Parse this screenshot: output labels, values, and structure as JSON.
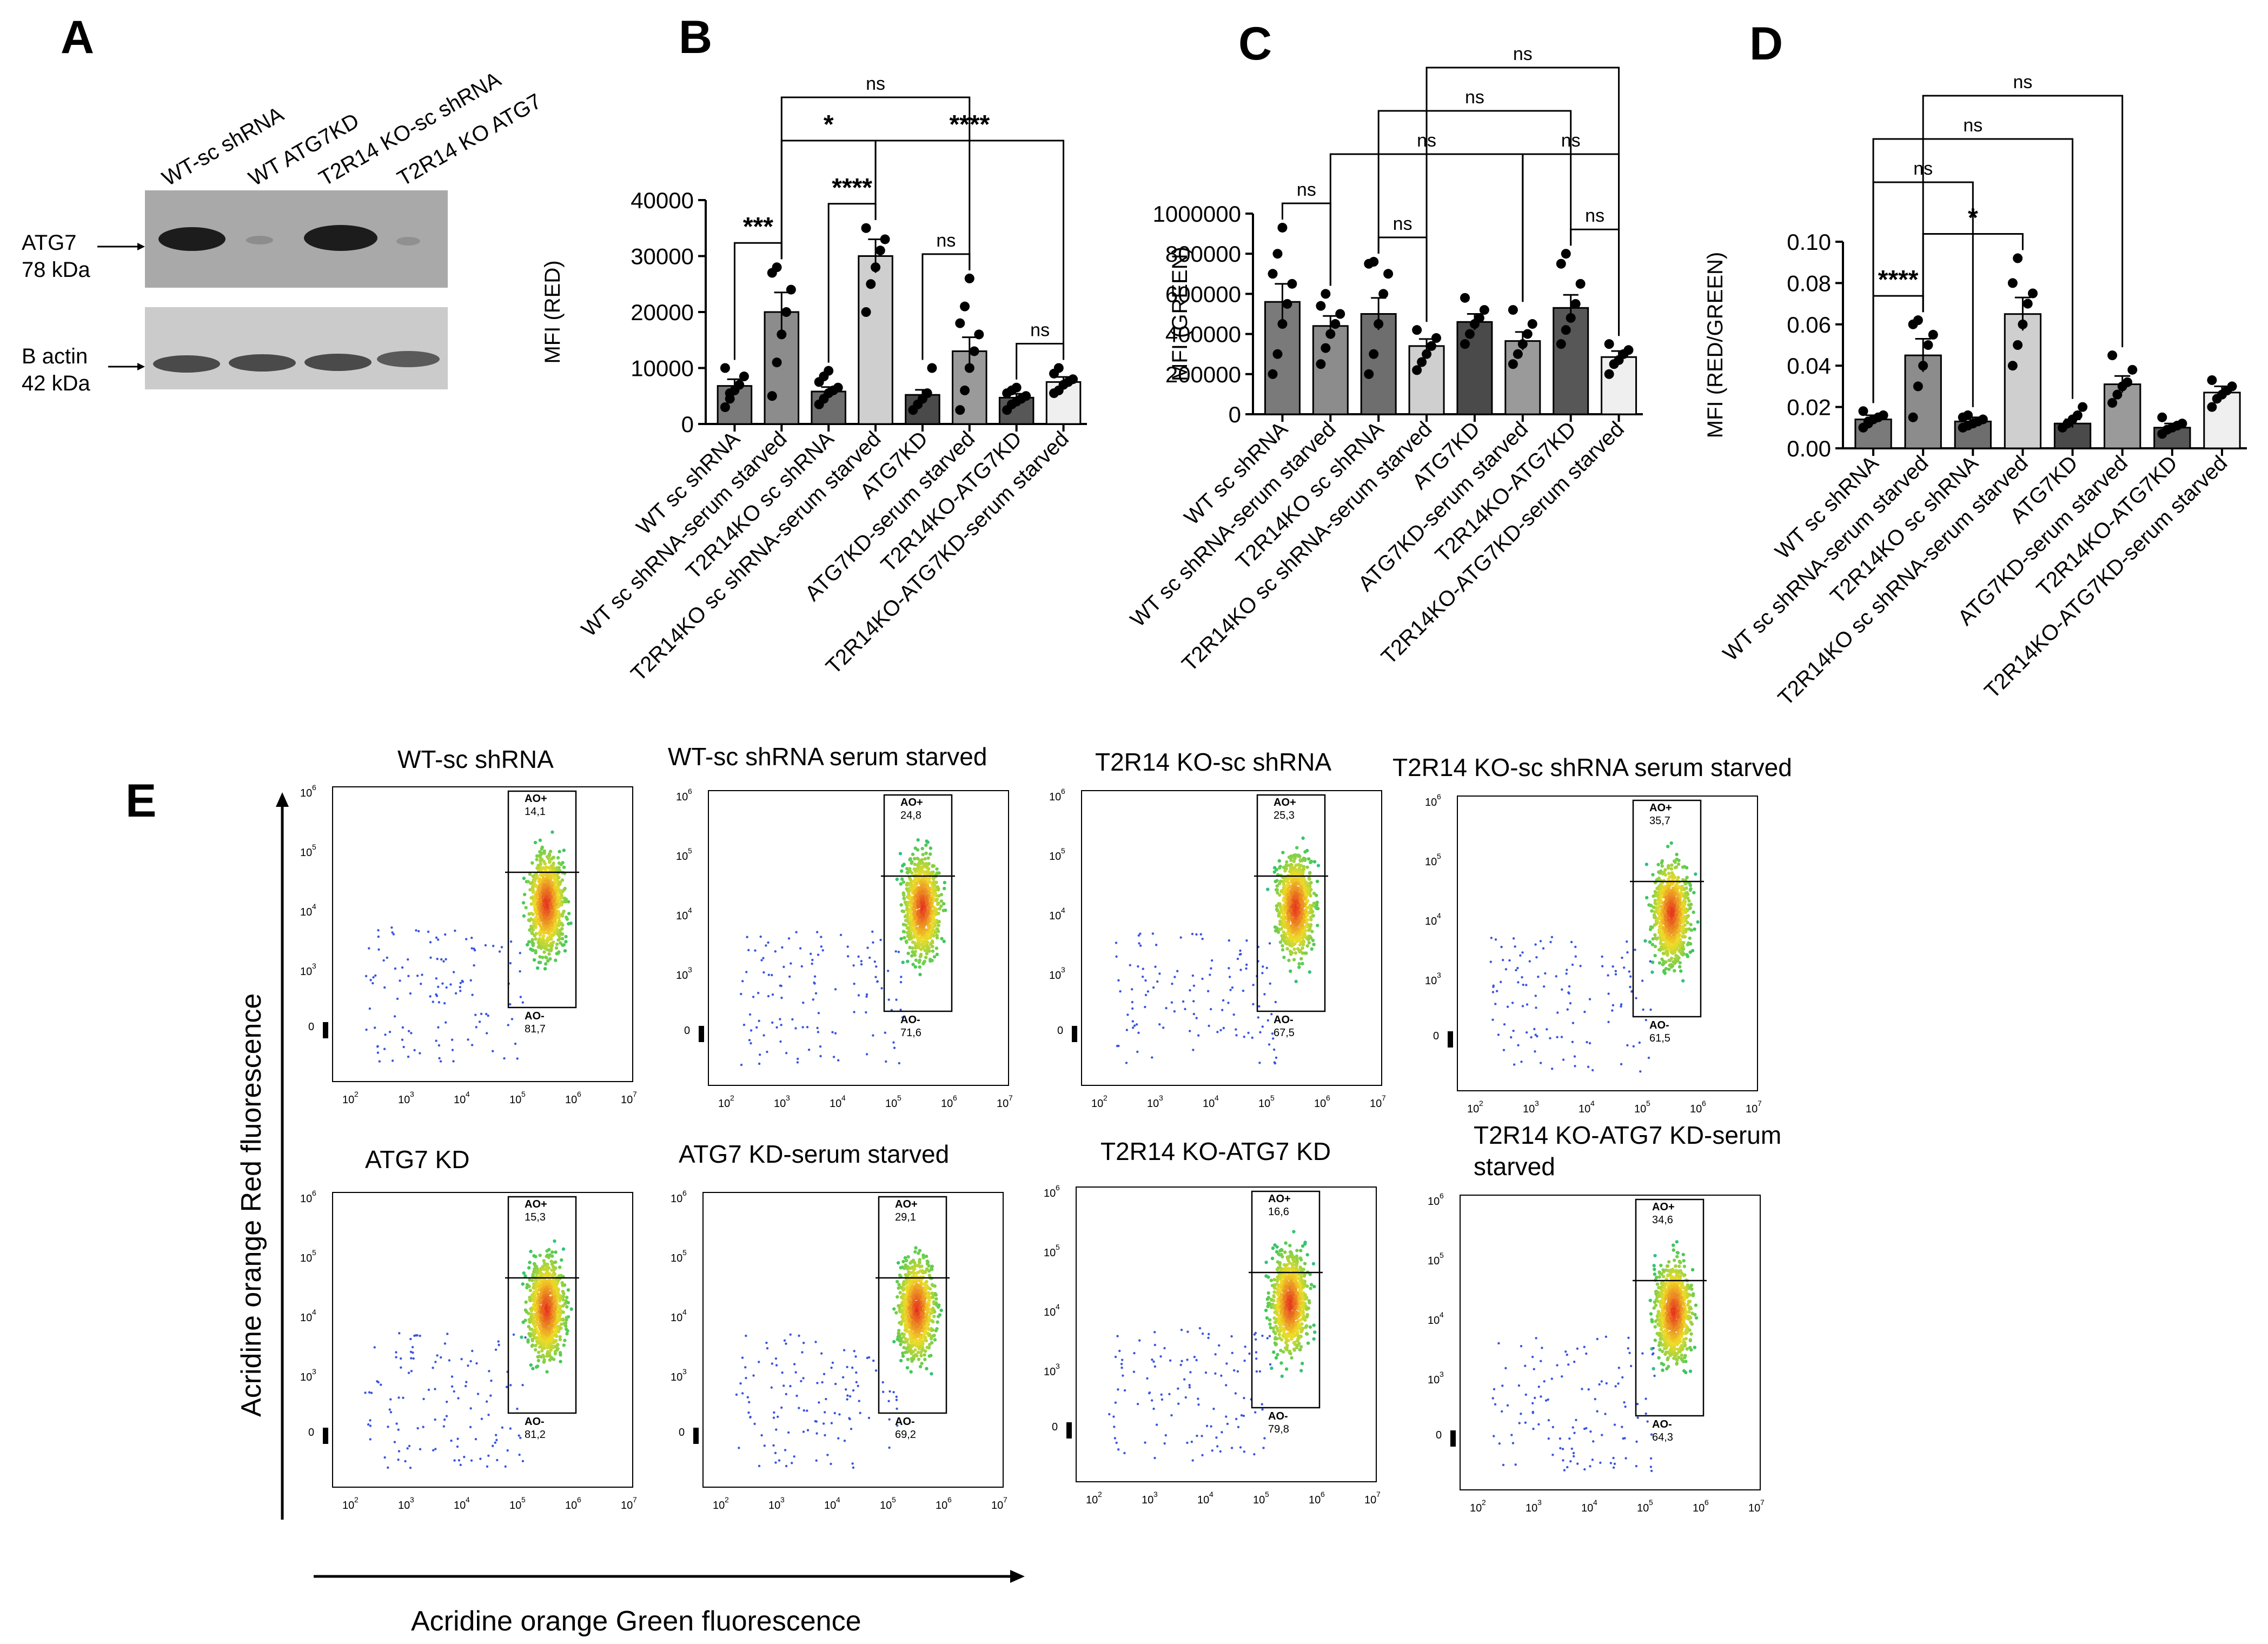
{
  "panel_letters": [
    "A",
    "B",
    "C",
    "D",
    "E"
  ],
  "blot": {
    "lane_labels": [
      "WT-sc shRNA",
      "WT ATG7KD",
      "T2R14 KO-sc shRNA",
      "T2R14 KO ATG7"
    ],
    "band1_label": [
      "ATG7",
      "78 kDa"
    ],
    "band2_label": [
      "B actin",
      "42 kDa"
    ]
  },
  "sig": {
    "ns": "ns",
    "s1": "*",
    "s3": "***",
    "s4": "****"
  },
  "chart_data": [
    {
      "panel": "B",
      "type": "bar",
      "ylabel": "MFI (RED)",
      "ylim": [
        0,
        40000
      ],
      "yticks": [
        "0",
        "10000",
        "20000",
        "30000",
        "40000"
      ],
      "categories": [
        "WT sc shRNA",
        "WT sc shRNA-serum starved",
        "T2R14KO sc shRNA",
        "T2R14KO sc shRNA-serum starved",
        "ATG7KD",
        "ATG7KD-serum starved",
        "T2R14KO-ATG7KD",
        "T2R14KO-ATG7KD-serum starved"
      ],
      "values": [
        6800,
        20000,
        5800,
        30000,
        5200,
        13000,
        4700,
        7500
      ],
      "sem": [
        1200,
        3500,
        800,
        3000,
        900,
        2500,
        700,
        900
      ],
      "bar_colors": [
        "#7a7a7a",
        "#8c8c8c",
        "#6e6e6e",
        "#cfcfcf",
        "#4a4a4a",
        "#9a9a9a",
        "#575757",
        "#efefef"
      ],
      "points": [
        [
          3000,
          4500,
          6000,
          7000,
          8500,
          10000,
          5500
        ],
        [
          5000,
          11000,
          16000,
          20000,
          24000,
          27000,
          28000
        ],
        [
          3500,
          4500,
          5500,
          6000,
          6500,
          7500,
          8500,
          9500
        ],
        [
          20000,
          25000,
          28000,
          31000,
          33000,
          35000
        ],
        [
          2500,
          3500,
          4500,
          5500,
          10000
        ],
        [
          2500,
          6000,
          10000,
          13000,
          16000,
          18000,
          21000,
          26000
        ],
        [
          2500,
          3500,
          4000,
          4500,
          5000,
          5500,
          6000,
          6500
        ],
        [
          5500,
          6000,
          7000,
          7500,
          8000,
          9000,
          10000
        ]
      ],
      "comparisons": [
        {
          "a": 0,
          "b": 1,
          "label": "***",
          "level": 0
        },
        {
          "a": 2,
          "b": 3,
          "label": "****",
          "level": 0
        },
        {
          "a": 4,
          "b": 5,
          "label": "ns",
          "level": 0
        },
        {
          "a": 6,
          "b": 7,
          "label": "ns",
          "level": 0
        },
        {
          "a": 1,
          "b": 3,
          "label": "*",
          "level": 1
        },
        {
          "a": 3,
          "b": 7,
          "label": "****",
          "level": 1
        },
        {
          "a": 1,
          "b": 5,
          "label": "ns",
          "level": 2
        }
      ]
    },
    {
      "panel": "C",
      "type": "bar",
      "ylabel": "MFI (GREEN)",
      "ylim": [
        0,
        1000000
      ],
      "yticks": [
        "0",
        "200000",
        "400000",
        "600000",
        "800000",
        "1000000"
      ],
      "categories": [
        "WT sc shRNA",
        "WT sc shRNA-serum starved",
        "T2R14KO sc shRNA",
        "T2R14KO sc shRNA-serum starved",
        "ATG7KD",
        "ATG7KD-serum starved",
        "T2R14KO-ATG7KD",
        "T2R14KO-ATG7KD-serum starved"
      ],
      "values": [
        560000,
        440000,
        500000,
        340000,
        460000,
        365000,
        530000,
        285000
      ],
      "sem": [
        90000,
        50000,
        80000,
        35000,
        40000,
        45000,
        65000,
        30000
      ],
      "bar_colors": [
        "#7a7a7a",
        "#8c8c8c",
        "#6e6e6e",
        "#cfcfcf",
        "#4a4a4a",
        "#9a9a9a",
        "#575757",
        "#efefef"
      ],
      "points": [
        [
          200000,
          300000,
          450000,
          550000,
          650000,
          700000,
          800000,
          930000
        ],
        [
          250000,
          330000,
          400000,
          450000,
          500000,
          540000,
          600000
        ],
        [
          200000,
          300000,
          450000,
          600000,
          700000,
          750000,
          760000
        ],
        [
          220000,
          260000,
          300000,
          340000,
          380000,
          420000
        ],
        [
          350000,
          400000,
          450000,
          480000,
          520000,
          580000
        ],
        [
          250000,
          300000,
          350000,
          400000,
          450000,
          520000
        ],
        [
          350000,
          420000,
          480000,
          550000,
          650000,
          750000,
          800000
        ],
        [
          200000,
          250000,
          270000,
          300000,
          320000,
          350000
        ]
      ],
      "comparisons": [
        {
          "a": 0,
          "b": 1,
          "label": "ns",
          "level": 0
        },
        {
          "a": 2,
          "b": 3,
          "label": "ns",
          "level": 0
        },
        {
          "a": 6,
          "b": 7,
          "label": "ns",
          "level": 0
        },
        {
          "a": 1,
          "b": 5,
          "label": "ns",
          "level": 1
        },
        {
          "a": 5,
          "b": 7,
          "label": "ns",
          "level": 1
        },
        {
          "a": 2,
          "b": 6,
          "label": "ns",
          "level": 2
        },
        {
          "a": 3,
          "b": 7,
          "label": "ns",
          "level": 3
        }
      ]
    },
    {
      "panel": "D",
      "type": "bar",
      "ylabel": "MFI (RED/GREEN)",
      "ylim": [
        0,
        0.1
      ],
      "yticks": [
        "0.00",
        "0.02",
        "0.04",
        "0.06",
        "0.08",
        "0.10"
      ],
      "categories": [
        "WT sc shRNA",
        "WT sc shRNA-serum starved",
        "T2R14KO sc shRNA",
        "T2R14KO sc shRNA-serum starved",
        "ATG7KD",
        "ATG7KD-serum starved",
        "T2R14KO-ATG7KD",
        "T2R14KO-ATG7KD-serum starved"
      ],
      "values": [
        0.014,
        0.045,
        0.013,
        0.065,
        0.012,
        0.031,
        0.01,
        0.027
      ],
      "sem": [
        0.002,
        0.008,
        0.002,
        0.008,
        0.002,
        0.004,
        0.002,
        0.003
      ],
      "bar_colors": [
        "#7a7a7a",
        "#8c8c8c",
        "#6e6e6e",
        "#cfcfcf",
        "#4a4a4a",
        "#9a9a9a",
        "#575757",
        "#efefef"
      ],
      "points": [
        [
          0.01,
          0.012,
          0.014,
          0.015,
          0.016,
          0.018,
          0.013
        ],
        [
          0.015,
          0.03,
          0.04,
          0.05,
          0.055,
          0.06,
          0.062
        ],
        [
          0.01,
          0.011,
          0.012,
          0.013,
          0.014,
          0.015,
          0.016
        ],
        [
          0.04,
          0.05,
          0.06,
          0.07,
          0.075,
          0.08,
          0.092
        ],
        [
          0.01,
          0.012,
          0.014,
          0.016,
          0.02
        ],
        [
          0.022,
          0.026,
          0.03,
          0.032,
          0.038,
          0.045
        ],
        [
          0.007,
          0.009,
          0.01,
          0.011,
          0.012,
          0.015
        ],
        [
          0.02,
          0.024,
          0.026,
          0.028,
          0.03,
          0.033
        ]
      ],
      "comparisons": [
        {
          "a": 0,
          "b": 1,
          "label": "****",
          "level": 0
        },
        {
          "a": 1,
          "b": 3,
          "label": "*",
          "level": 0
        },
        {
          "a": 0,
          "b": 2,
          "label": "ns",
          "level": 1
        },
        {
          "a": 0,
          "b": 4,
          "label": "ns",
          "level": 2
        },
        {
          "a": 1,
          "b": 5,
          "label": "ns",
          "level": 3
        }
      ]
    },
    {
      "panel": "E",
      "type": "scatter",
      "xlabel": "Acridine orange Green fluorescence",
      "ylabel": "Acridine orange Red  fluorescence",
      "axis_ticks": [
        "0",
        "10",
        "2",
        "3",
        "4",
        "5",
        "6",
        "7"
      ],
      "gate_labels": [
        "AO+",
        "AO-"
      ],
      "plots": [
        {
          "title": "WT-sc shRNA",
          "ao_plus": "14,1",
          "ao_minus": "81,7"
        },
        {
          "title": "WT-sc shRNA serum starved",
          "ao_plus": "24,8",
          "ao_minus": "71,6"
        },
        {
          "title": "T2R14 KO-sc shRNA",
          "ao_plus": "25,3",
          "ao_minus": "67,5"
        },
        {
          "title": "T2R14 KO-sc shRNA serum starved",
          "ao_plus": "35,7",
          "ao_minus": "61,5"
        },
        {
          "title": "ATG7 KD",
          "ao_plus": "15,3",
          "ao_minus": "81,2"
        },
        {
          "title": "ATG7 KD-serum starved",
          "ao_plus": "29,1",
          "ao_minus": "69,2"
        },
        {
          "title": "T2R14 KO-ATG7 KD",
          "ao_plus": "16,6",
          "ao_minus": "79,8"
        },
        {
          "title": "T2R14 KO-ATG7 KD-serum starved",
          "ao_plus": "34,6",
          "ao_minus": "64,3"
        }
      ]
    }
  ]
}
